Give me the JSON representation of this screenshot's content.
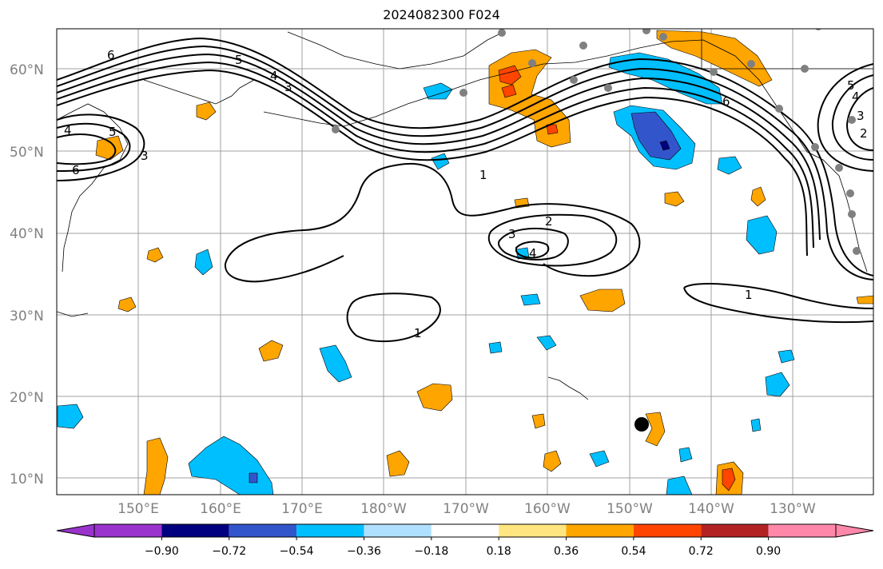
{
  "title": "2024082300 F024",
  "latitude_labels": [
    "60°N",
    "50°N",
    "40°N",
    "30°N",
    "20°N",
    "10°N"
  ],
  "longitude_labels": [
    "150°E",
    "160°E",
    "170°E",
    "180°W",
    "170°W",
    "160°W",
    "150°W",
    "140°W",
    "130°W"
  ],
  "contour_labels": {
    "nw_6": "6",
    "nw_5a": "5",
    "nw_4a": "4",
    "nw_3a": "3",
    "w_5": "5",
    "w_4": "4",
    "w_3": "3",
    "w_6": "6",
    "c_1": "1",
    "low_2": "2",
    "low_3": "3",
    "low_4": "4",
    "s_1": "1",
    "e_1": "1",
    "ne_6": "6",
    "ne_5": "5",
    "ne_4": "4",
    "ne_3": "3",
    "ne_2": "2"
  },
  "colorbar": {
    "tick_labels": [
      "−0.90",
      "−0.72",
      "−0.54",
      "−0.36",
      "−0.18",
      "0.18",
      "0.36",
      "0.54",
      "0.72",
      "0.90"
    ],
    "colors": [
      "#9933cc",
      "#000080",
      "#3355cc",
      "#00bfff",
      "#b0e0ff",
      "#ffffff",
      "#ffe680",
      "#ffa500",
      "#ff4500",
      "#b22222",
      "#ff88aa"
    ]
  },
  "colors": {
    "orange": "#ffa500",
    "red": "#ff4500",
    "sky": "#00bfff",
    "blue": "#3355cc",
    "navy": "#000080",
    "station": "#808080",
    "storm": "#000000"
  }
}
